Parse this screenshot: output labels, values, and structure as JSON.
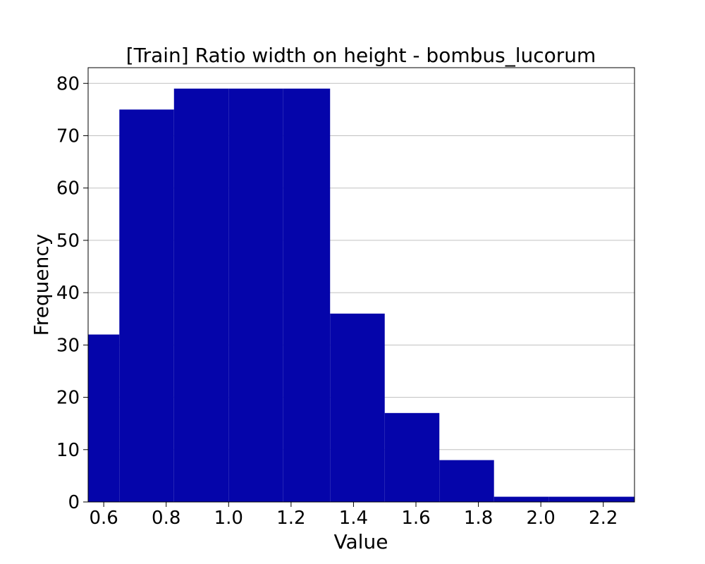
{
  "chart_data": {
    "type": "bar",
    "title": "[Train] Ratio width on height - bombus_lucorum",
    "xlabel": "Value",
    "ylabel": "Frequency",
    "xlim": [
      0.55,
      2.3
    ],
    "ylim": [
      0,
      83
    ],
    "bins": [
      {
        "x0": 0.55,
        "x1": 0.65,
        "count": 32
      },
      {
        "x0": 0.65,
        "x1": 0.825,
        "count": 75
      },
      {
        "x0": 0.825,
        "x1": 1.0,
        "count": 79
      },
      {
        "x0": 1.0,
        "x1": 1.175,
        "count": 79
      },
      {
        "x0": 1.175,
        "x1": 1.325,
        "count": 79
      },
      {
        "x0": 1.325,
        "x1": 1.5,
        "count": 36
      },
      {
        "x0": 1.5,
        "x1": 1.675,
        "count": 17
      },
      {
        "x0": 1.675,
        "x1": 1.85,
        "count": 8
      },
      {
        "x0": 1.85,
        "x1": 2.025,
        "count": 1
      },
      {
        "x0": 2.025,
        "x1": 2.3,
        "count": 1
      }
    ],
    "x_ticks": [
      "0.6",
      "0.8",
      "1.0",
      "1.2",
      "1.4",
      "1.6",
      "1.8",
      "2.0",
      "2.2"
    ],
    "y_ticks": [
      "0",
      "10",
      "20",
      "30",
      "40",
      "50",
      "60",
      "70",
      "80"
    ],
    "grid": "horizontal",
    "bar_color": "#0505aa",
    "grid_color": "#c0c0c0"
  }
}
